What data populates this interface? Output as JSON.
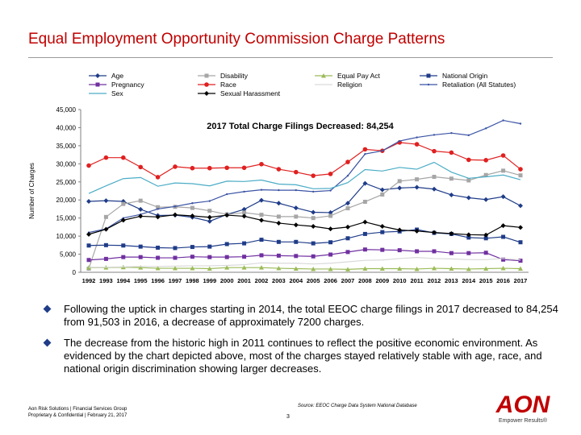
{
  "title": "Equal Employment Opportunity Commission Charge Patterns",
  "bullets": [
    "Following the uptick in charges starting in 2014, the total EEOC charge filings in 2017 decreased to 84,254 from 91,503 in 2016, a decrease of approximately 7200 charges.",
    "The decrease from the historic high in 2011 continues to reflect the positive economic environment. As evidenced by the chart depicted above, most of the charges stayed relatively stable with age, race, and national origin discrimination showing larger decreases."
  ],
  "footer": {
    "line1": "Aon Risk Solutions | Financial Services Group",
    "line2": "Proprietary & Confidential | February 21, 2017",
    "source": "Source: EEOC Charge Data System National Database",
    "page": "3"
  },
  "logo": {
    "text": "AON",
    "tagline": "Empower Results®",
    "color": "#c00000"
  },
  "chart_data": {
    "type": "line",
    "annotation": "2017 Total Charge Filings Decreased:  84,254",
    "ylabel": "Number of Charges",
    "xlabel": "",
    "ylim": [
      0,
      45000
    ],
    "yticks": [
      0,
      5000,
      10000,
      15000,
      20000,
      25000,
      30000,
      35000,
      40000,
      45000
    ],
    "ytick_labels": [
      "0",
      "5,000",
      "10,000",
      "15,000",
      "20,000",
      "25,000",
      "30,000",
      "35,000",
      "40,000",
      "45,000"
    ],
    "legend_position": "top",
    "grid": false,
    "x": [
      "1992",
      "1993",
      "1994",
      "1995",
      "1996",
      "1997",
      "1998",
      "1999",
      "2000",
      "2001",
      "2002",
      "2003",
      "2004",
      "2005",
      "2006",
      "2007",
      "2008",
      "2009",
      "2010",
      "2011",
      "2012",
      "2013",
      "2014",
      "2015",
      "2016",
      "2017"
    ],
    "series": [
      {
        "name": "Age",
        "color": "#1f3c88",
        "marker": "diamond",
        "values": [
          19600,
          19800,
          19600,
          17400,
          15700,
          15800,
          15200,
          14100,
          16000,
          17400,
          19900,
          19100,
          17800,
          16600,
          16500,
          19100,
          24600,
          22800,
          23300,
          23500,
          23000,
          21400,
          20600,
          20100,
          20900,
          18400
        ]
      },
      {
        "name": "Disability",
        "color": "#a6a6a6",
        "marker": "square",
        "values": [
          1000,
          15300,
          18900,
          19800,
          18000,
          18100,
          17800,
          17000,
          16000,
          16500,
          15900,
          15400,
          15400,
          15000,
          15600,
          17700,
          19500,
          21500,
          25200,
          25700,
          26400,
          25900,
          25400,
          26900,
          28100,
          26800
        ]
      },
      {
        "name": "Equal Pay Act",
        "color": "#9bbb59",
        "marker": "triangle",
        "values": [
          1300,
          1300,
          1400,
          1300,
          1100,
          1100,
          1100,
          1000,
          1300,
          1300,
          1300,
          1100,
          1000,
          900,
          900,
          800,
          1000,
          1000,
          1000,
          900,
          1100,
          1000,
          900,
          1000,
          1100,
          1000
        ]
      },
      {
        "name": "National Origin",
        "color": "#1f3c88",
        "marker": "square",
        "values": [
          7400,
          7500,
          7400,
          7100,
          6800,
          6700,
          7000,
          7100,
          7800,
          8000,
          9000,
          8400,
          8400,
          8000,
          8300,
          9400,
          10600,
          11100,
          11300,
          11800,
          10900,
          10600,
          9600,
          9400,
          9800,
          8300
        ]
      },
      {
        "name": "Pregnancy",
        "color": "#7030a0",
        "marker": "square",
        "values": [
          3400,
          3700,
          4200,
          4200,
          4000,
          4000,
          4300,
          4200,
          4200,
          4300,
          4700,
          4600,
          4500,
          4400,
          4900,
          5600,
          6300,
          6200,
          6100,
          5800,
          5800,
          5300,
          5300,
          5400,
          3500,
          3200
        ]
      },
      {
        "name": "Race",
        "color": "#e02020",
        "marker": "circle",
        "values": [
          29500,
          31700,
          31700,
          29100,
          26300,
          29200,
          28800,
          28800,
          28900,
          28900,
          29900,
          28500,
          27700,
          26700,
          27200,
          30500,
          34000,
          33600,
          35900,
          35400,
          33500,
          33100,
          31100,
          31000,
          32300,
          28500
        ]
      },
      {
        "name": "Equal Pay Act",
        "color": "#9bbb59",
        "marker": "triangle",
        "values": [
          1300,
          1300,
          1400,
          1300,
          1100,
          1100,
          1100,
          1000,
          1300,
          1300,
          1300,
          1100,
          1000,
          900,
          900,
          800,
          1000,
          1000,
          1000,
          900,
          1100,
          1000,
          900,
          1000,
          1100,
          1000
        ]
      },
      {
        "name": "Religion",
        "color": "#d9d9d9",
        "marker": "none",
        "values": [
          1400,
          1400,
          1500,
          1600,
          1600,
          1700,
          1800,
          1800,
          1900,
          2100,
          2600,
          2500,
          2500,
          2300,
          2500,
          2900,
          3300,
          3400,
          3800,
          4100,
          3800,
          3700,
          3500,
          3500,
          3800,
          3400
        ]
      },
      {
        "name": "Retaliation (All Statutes)",
        "color": "#3a53a4",
        "marker": "dot",
        "values": [
          11000,
          12000,
          15000,
          16000,
          17500,
          18200,
          19100,
          19700,
          21600,
          22300,
          22800,
          22700,
          22700,
          22300,
          22600,
          26700,
          32700,
          33600,
          36300,
          37300,
          38000,
          38500,
          37900,
          39800,
          42000,
          41100
        ]
      },
      {
        "name": "Sex",
        "color": "#4bacc6",
        "marker": "none",
        "values": [
          21800,
          23900,
          25900,
          26200,
          23800,
          24700,
          24500,
          23900,
          25200,
          25100,
          25500,
          24400,
          24200,
          23100,
          23200,
          24800,
          28400,
          28000,
          29000,
          28500,
          30400,
          27700,
          26000,
          26400,
          26900,
          25600
        ]
      },
      {
        "name": "Sexual Harassment",
        "color": "#000000",
        "marker": "diamond",
        "values": [
          10500,
          11900,
          14400,
          15500,
          15300,
          15900,
          15600,
          15200,
          15800,
          15500,
          14400,
          13600,
          13100,
          12700,
          12000,
          12500,
          13900,
          12700,
          11700,
          11400,
          11000,
          10700,
          10400,
          10300,
          12900,
          12400
        ]
      }
    ]
  }
}
